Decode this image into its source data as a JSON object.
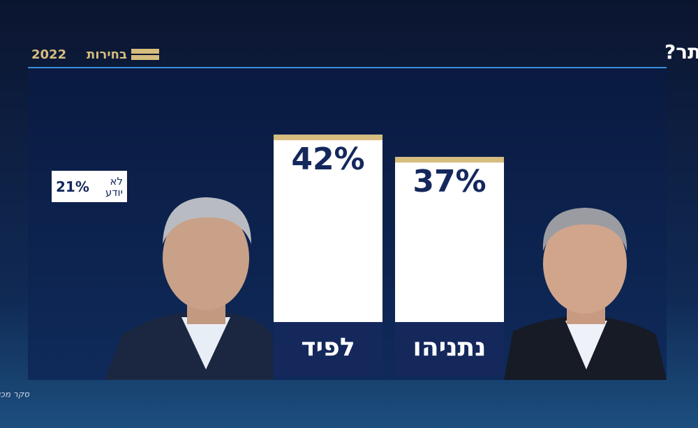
{
  "chart_data": {
    "type": "bar",
    "title": "מי לדעתך אמין יותר?",
    "brand": "בחירות",
    "brand_year": "2022",
    "categories": [
      "לפיד",
      "נתניהו"
    ],
    "values": [
      42,
      37
    ],
    "value_labels": [
      "42%",
      "37%"
    ],
    "color": "#ffffff",
    "cap_color": "#d6bd7e",
    "label_box_color": "#14285c",
    "other": {
      "label": "לא יודע",
      "value": 21,
      "value_label": "21%"
    },
    "source": "סקר מכון מדגם עם מנו גבע בשיתוף iPanel"
  }
}
